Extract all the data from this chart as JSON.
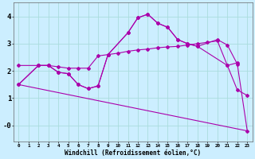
{
  "xlabel": "Windchill (Refroidissement éolien,°C)",
  "background_color": "#cceeff",
  "grid_color": "#aadddd",
  "line_color": "#aa00aa",
  "xlim": [
    -0.5,
    23.5
  ],
  "ylim": [
    -0.6,
    4.5
  ],
  "xticks": [
    0,
    1,
    2,
    3,
    4,
    5,
    6,
    7,
    8,
    9,
    10,
    11,
    12,
    13,
    14,
    15,
    16,
    17,
    18,
    19,
    20,
    21,
    22,
    23
  ],
  "curve1_x": [
    0,
    2,
    3,
    4,
    5,
    6,
    7,
    8,
    9,
    10,
    11,
    12,
    13,
    14,
    15,
    16,
    17,
    18,
    19,
    20,
    21,
    22
  ],
  "curve1_y": [
    2.2,
    2.2,
    2.2,
    2.15,
    2.1,
    2.1,
    2.1,
    2.55,
    2.6,
    2.65,
    2.72,
    2.77,
    2.8,
    2.85,
    2.88,
    2.9,
    2.95,
    3.0,
    3.05,
    3.1,
    2.2,
    2.3
  ],
  "curve2_x": [
    0,
    2,
    3,
    4,
    5,
    6,
    7,
    8,
    9,
    11,
    12,
    13,
    14,
    15,
    16,
    17,
    18,
    21,
    22,
    23
  ],
  "curve2_y": [
    1.5,
    2.2,
    2.2,
    1.95,
    1.9,
    1.5,
    1.35,
    1.45,
    2.6,
    3.4,
    3.95,
    4.08,
    3.75,
    3.6,
    3.15,
    3.0,
    2.9,
    2.2,
    1.3,
    1.1
  ],
  "curve3_x": [
    0,
    2,
    3,
    4,
    5,
    6,
    7,
    8,
    9,
    11,
    12,
    13,
    14,
    15,
    16,
    17,
    18,
    20,
    21,
    22,
    23
  ],
  "curve3_y": [
    1.5,
    2.2,
    2.2,
    1.95,
    1.9,
    1.5,
    1.35,
    1.45,
    2.6,
    3.4,
    3.95,
    4.08,
    3.75,
    3.6,
    3.15,
    3.0,
    2.9,
    3.15,
    2.95,
    2.25,
    -0.2
  ],
  "curve4_x": [
    0,
    23
  ],
  "curve4_y": [
    1.5,
    -0.2
  ]
}
